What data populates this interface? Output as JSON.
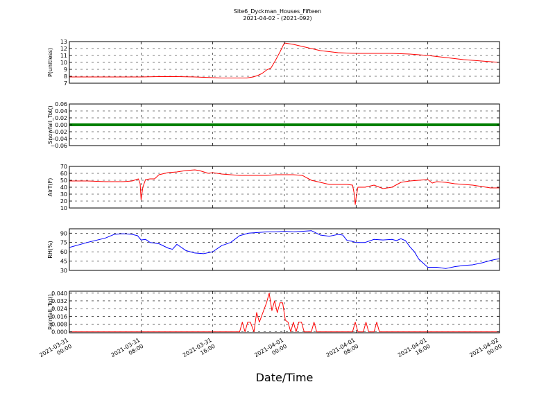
{
  "figure": {
    "title": "Site6_Dyckman_Houses_Fifteen",
    "subtitle": "2021-04-02 - (2021-092)",
    "xlabel": "Date/Time"
  },
  "chart_data": {
    "type": "line",
    "x_ticks": [
      "2021-03-31\n00:00",
      "2021-03-31\n08:00",
      "2021-03-31\n16:00",
      "2021-04-01\n00:00",
      "2021-04-01\n08:00",
      "2021-04-01\n16:00",
      "2021-04-02\n00:00"
    ],
    "xlim_hours": [
      0,
      48
    ],
    "grid": true,
    "panels": [
      {
        "id": "p",
        "ylabel": "P(unitless)",
        "ylim": [
          7,
          13
        ],
        "yticks": [
          7,
          8,
          9,
          10,
          11,
          12,
          13
        ],
        "ytick_labels": [
          "7",
          "8",
          "9",
          "10",
          "11",
          "12",
          "13"
        ],
        "series": [
          {
            "color": "#ff0000",
            "style": "line",
            "x": [
              0,
              2,
              4,
              6,
              8,
              10,
              12,
              14,
              15,
              16,
              17,
              18,
              19,
              19.8,
              20,
              20.5,
              21,
              21.5,
              22,
              22.5,
              23,
              23.5,
              23.8,
              24,
              24.5,
              25,
              26,
              27,
              28,
              30,
              32,
              34,
              36,
              38,
              40,
              42,
              44,
              46,
              48
            ],
            "y": [
              7.9,
              7.9,
              7.9,
              7.9,
              7.9,
              7.95,
              7.95,
              7.9,
              7.85,
              7.8,
              7.75,
              7.75,
              7.75,
              7.75,
              7.8,
              7.9,
              8.1,
              8.4,
              8.9,
              9.2,
              10.3,
              11.5,
              12.3,
              12.8,
              12.7,
              12.6,
              12.3,
              12.0,
              11.7,
              11.4,
              11.3,
              11.3,
              11.3,
              11.2,
              11.0,
              10.7,
              10.4,
              10.2,
              10.0
            ]
          }
        ]
      },
      {
        "id": "snow",
        "ylabel": "Snowfall_Tot()",
        "ylim": [
          -0.06,
          0.06
        ],
        "yticks": [
          -0.06,
          -0.04,
          -0.02,
          0.0,
          0.02,
          0.04,
          0.06
        ],
        "ytick_labels": [
          "−0.06",
          "−0.04",
          "−0.02",
          "0.00",
          "0.02",
          "0.04",
          "0.06"
        ],
        "series": [
          {
            "color": "#008000",
            "style": "thick",
            "x": [
              0,
              48
            ],
            "y": [
              0,
              0
            ]
          }
        ]
      },
      {
        "id": "airt",
        "ylabel": "AirT(F)",
        "ylim": [
          10,
          70
        ],
        "yticks": [
          10,
          20,
          30,
          40,
          50,
          60,
          70
        ],
        "ytick_labels": [
          "10",
          "20",
          "30",
          "40",
          "50",
          "60",
          "70"
        ],
        "series": [
          {
            "color": "#ff0000",
            "style": "line",
            "x": [
              0,
              2,
              4,
              6,
              7,
              7.7,
              7.9,
              8.0,
              8.2,
              8.5,
              9,
              9.5,
              10,
              11,
              12,
              13,
              14,
              14.5,
              15,
              15.5,
              16,
              17,
              18,
              19,
              20,
              21,
              22,
              23,
              24,
              25,
              26,
              27,
              28,
              29,
              30,
              31,
              31.6,
              31.8,
              31.9,
              32.0,
              32.2,
              33,
              34,
              35,
              36,
              37,
              38,
              39,
              40,
              40.5,
              41,
              42,
              43,
              44,
              45,
              46,
              47,
              48
            ],
            "y": [
              49,
              49,
              48,
              48,
              49,
              52,
              45,
              22,
              40,
              51,
              52,
              52,
              58,
              61,
              62,
              64,
              65,
              64,
              62,
              60,
              61,
              59,
              58,
              57,
              57,
              57,
              57,
              58,
              58,
              58,
              57,
              50,
              47,
              44,
              44,
              44,
              43,
              30,
              15,
              25,
              40,
              40,
              43,
              38,
              40,
              47,
              49,
              50,
              51,
              46,
              48,
              47,
              45,
              44,
              43,
              41,
              39,
              39
            ]
          }
        ]
      },
      {
        "id": "rh",
        "ylabel": "RH(%)",
        "ylim": [
          30,
          97
        ],
        "yticks": [
          30,
          45,
          60,
          75,
          90
        ],
        "ytick_labels": [
          "30",
          "45",
          "60",
          "75",
          "90"
        ],
        "series": [
          {
            "color": "#0000ff",
            "style": "line",
            "x": [
              0,
              2,
              4,
              5,
              6,
              7,
              7.6,
              8,
              8.5,
              9,
              10,
              11,
              11.5,
              12,
              13,
              14,
              15,
              16,
              17,
              18,
              19,
              20,
              21,
              22,
              23,
              24,
              25,
              26,
              27,
              28,
              29,
              30,
              30.5,
              31,
              31.5,
              32,
              33,
              34,
              35,
              36,
              36.5,
              37,
              37.5,
              38,
              38.5,
              39,
              40,
              41,
              42,
              43,
              44,
              45,
              46,
              47,
              48
            ],
            "y": [
              67,
              75,
              82,
              88,
              89,
              88,
              86,
              79,
              80,
              75,
              73,
              66,
              64,
              72,
              62,
              58,
              57,
              60,
              70,
              75,
              86,
              90,
              91,
              92,
              92,
              93,
              92,
              93,
              94,
              87,
              85,
              88,
              87,
              78,
              77,
              75,
              75,
              80,
              79,
              80,
              78,
              81,
              78,
              68,
              60,
              48,
              35,
              35,
              33,
              36,
              38,
              39,
              42,
              46,
              49
            ]
          }
        ]
      },
      {
        "id": "rain",
        "ylabel": "Rainfall_Tot()",
        "ylim": [
          -0.001,
          0.042
        ],
        "yticks": [
          0.0,
          0.008,
          0.016,
          0.024,
          0.032,
          0.04
        ],
        "ytick_labels": [
          "0.000",
          "0.008",
          "0.016",
          "0.024",
          "0.032",
          "0.040"
        ],
        "series": [
          {
            "color": "#ff0000",
            "style": "line",
            "x": [
              0,
              19,
              19.3,
              19.6,
              19.9,
              20.2,
              20.6,
              20.9,
              21.2,
              21.6,
              22.0,
              22.3,
              22.6,
              22.9,
              23.2,
              23.5,
              23.8,
              24.1,
              24.4,
              24.7,
              25.0,
              25.3,
              25.6,
              25.9,
              26.2,
              27,
              27.3,
              27.6,
              31.6,
              31.9,
              32.2,
              32.8,
              33.1,
              33.4,
              34.0,
              34.3,
              34.6,
              48
            ],
            "y": [
              0,
              0,
              0.01,
              0,
              0.01,
              0.01,
              0,
              0.02,
              0.01,
              0.02,
              0.03,
              0.04,
              0.022,
              0.032,
              0.02,
              0.03,
              0.03,
              0.012,
              0.01,
              0,
              0.01,
              0,
              0.01,
              0.01,
              0,
              0,
              0.01,
              0,
              0,
              0.01,
              0,
              0,
              0.01,
              0,
              0,
              0.01,
              0,
              0
            ]
          }
        ]
      }
    ]
  }
}
